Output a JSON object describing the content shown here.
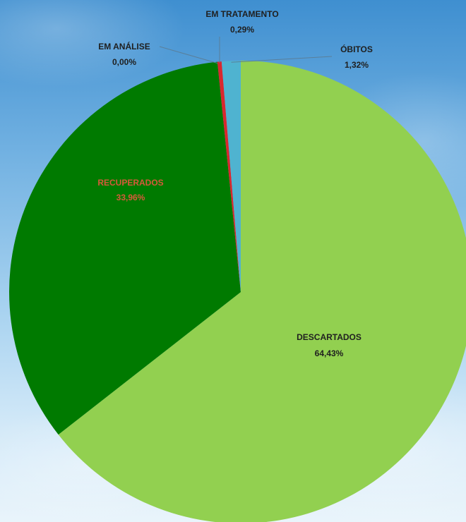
{
  "chart_data": {
    "type": "pie",
    "slices": [
      {
        "name": "DESCARTADOS",
        "value": 64.43,
        "value_label": "64,43%",
        "color": "#92d050"
      },
      {
        "name": "RECUPERADOS",
        "value": 33.96,
        "value_label": "33,96%",
        "color": "#007a00"
      },
      {
        "name": "EM ANÁLISE",
        "value": 0.0,
        "value_label": "0,00%",
        "color": "#3a7fd6"
      },
      {
        "name": "EM TRATAMENTO",
        "value": 0.29,
        "value_label": "0,29%",
        "color": "#d9272e"
      },
      {
        "name": "ÓBITOS",
        "value": 1.32,
        "value_label": "1,32%",
        "color": "#4fb3d0"
      }
    ],
    "legend": "none"
  }
}
